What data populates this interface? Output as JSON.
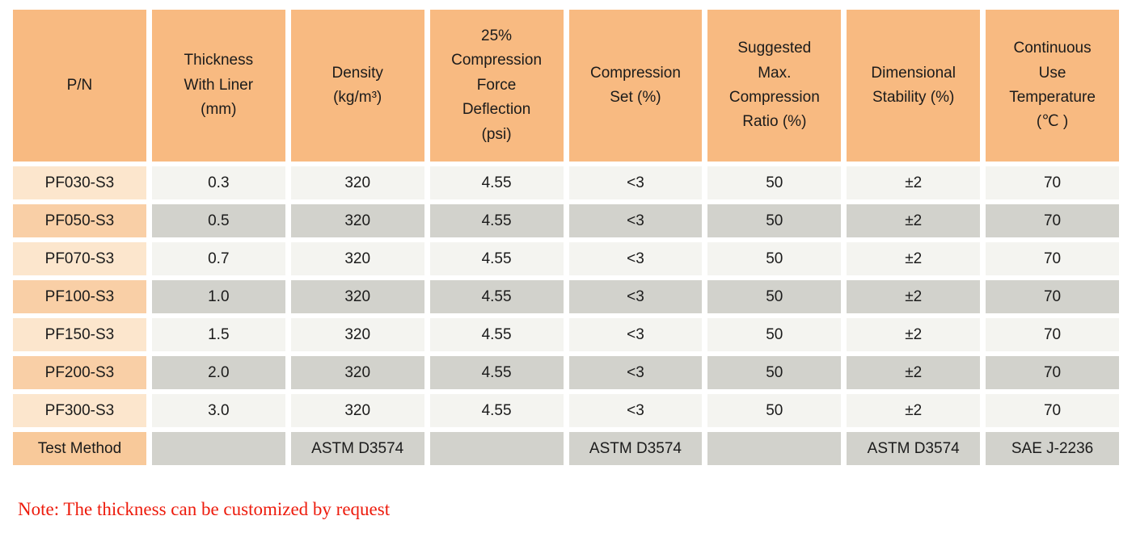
{
  "colors": {
    "header_bg": "#f8ba81",
    "pn_light_bg": "#fce6cd",
    "pn_dark_bg": "#f9cfa6",
    "pn_test_bg": "#f8c99a",
    "row_light_bg": "#f4f4f0",
    "row_dark_bg": "#d2d2cc",
    "note_red": "#ed1b0c",
    "text": "#1b1b1b"
  },
  "table": {
    "headers": [
      "P/N",
      "Thickness\nWith Liner\n(mm)",
      "Density\n(kg/m³)",
      "25%\nCompression\nForce\nDeflection\n(psi)",
      "Compression\nSet (%)",
      "Suggested\nMax.\nCompression\nRatio (%)",
      "Dimensional\nStability (%)",
      "Continuous\nUse\nTemperature\n(℃ )"
    ],
    "rows": [
      [
        "PF030-S3",
        "0.3",
        "320",
        "4.55",
        "<3",
        "50",
        "±2",
        "70"
      ],
      [
        "PF050-S3",
        "0.5",
        "320",
        "4.55",
        "<3",
        "50",
        "±2",
        "70"
      ],
      [
        "PF070-S3",
        "0.7",
        "320",
        "4.55",
        "<3",
        "50",
        "±2",
        "70"
      ],
      [
        "PF100-S3",
        "1.0",
        "320",
        "4.55",
        "<3",
        "50",
        "±2",
        "70"
      ],
      [
        "PF150-S3",
        "1.5",
        "320",
        "4.55",
        "<3",
        "50",
        "±2",
        "70"
      ],
      [
        "PF200-S3",
        "2.0",
        "320",
        "4.55",
        "<3",
        "50",
        "±2",
        "70"
      ],
      [
        "PF300-S3",
        "3.0",
        "320",
        "4.55",
        "<3",
        "50",
        "±2",
        "70"
      ],
      [
        "Test Method",
        "",
        "ASTM D3574",
        "",
        "ASTM D3574",
        "",
        "ASTM D3574",
        "SAE J-2236"
      ]
    ]
  },
  "note": {
    "text": "Note: The thickness can be customized by request"
  }
}
